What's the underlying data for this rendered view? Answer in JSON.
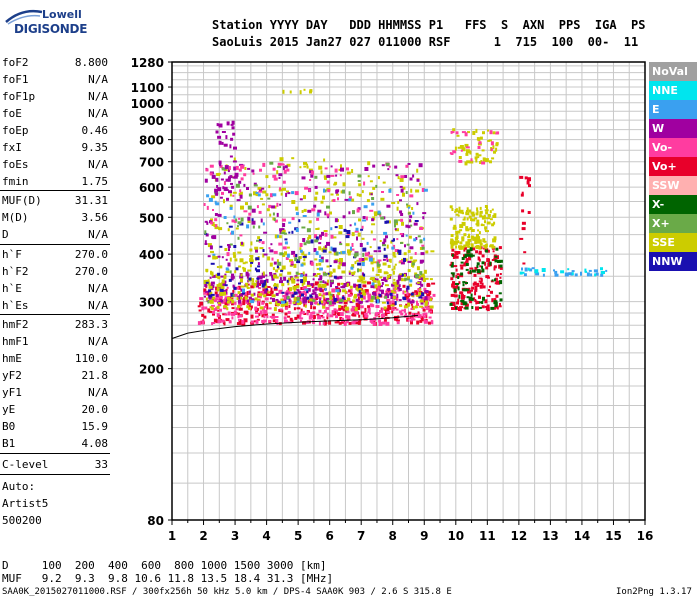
{
  "logo": {
    "line1": "Lowell",
    "line2": "DIGISONDE"
  },
  "header": {
    "labels": "Station YYYY DAY   DDD HHMMSS P1   FFS  S  AXN  PPS  IGA  PS",
    "values": "SaoLuis 2015 Jan27 027 011000 RSF      1  715  100  00-  11"
  },
  "params": [
    {
      "k": "foF2",
      "v": "8.800"
    },
    {
      "k": "foF1",
      "v": "N/A"
    },
    {
      "k": "foF1p",
      "v": "N/A"
    },
    {
      "k": "foE",
      "v": "N/A"
    },
    {
      "k": "foEp",
      "v": "0.46"
    },
    {
      "k": "fxI",
      "v": "9.35"
    },
    {
      "k": "foEs",
      "v": "N/A"
    },
    {
      "k": "fmin",
      "v": "1.75"
    },
    {
      "k": "MUF(D)",
      "v": "31.31"
    },
    {
      "k": "M(D)",
      "v": "3.56"
    },
    {
      "k": "D",
      "v": "N/A"
    },
    {
      "k": "h`F",
      "v": "270.0"
    },
    {
      "k": "h`F2",
      "v": "270.0"
    },
    {
      "k": "h`E",
      "v": "N/A"
    },
    {
      "k": "h`Es",
      "v": "N/A"
    },
    {
      "k": "hmF2",
      "v": "283.3"
    },
    {
      "k": "hmF1",
      "v": "N/A"
    },
    {
      "k": "hmE",
      "v": "110.0"
    },
    {
      "k": "yF2",
      "v": "21.8"
    },
    {
      "k": "yF1",
      "v": "N/A"
    },
    {
      "k": "yE",
      "v": "20.0"
    },
    {
      "k": "B0",
      "v": "15.9"
    },
    {
      "k": "B1",
      "v": "4.08"
    },
    {
      "k": "C-level",
      "v": "33"
    }
  ],
  "auto": {
    "l1": "Auto:",
    "l2": "Artist5",
    "l3": "500200"
  },
  "muf_table": {
    "row1": "D     100  200  400  600  800 1000 1500 3000 [km]",
    "row2": "MUF   9.2  9.3  9.8 10.6 11.8 13.5 18.4 31.3 [MHz]"
  },
  "footer": {
    "left": "SAA0K_2015027011000.RSF / 300fx256h 50 kHz 5.0 km / DPS-4 SAA0K 903 / 2.6 S 315.8 E",
    "right": "Ion2Png 1.3.17"
  },
  "legend": [
    {
      "label": "NoVal",
      "bg": "#a0a0a0",
      "fg": "#ffffff"
    },
    {
      "label": "NNE",
      "bg": "#00e5ee",
      "fg": "#ffffff"
    },
    {
      "label": "E",
      "bg": "#3aa0f0",
      "fg": "#ffffff"
    },
    {
      "label": "W",
      "bg": "#a000a0",
      "fg": "#ffffff"
    },
    {
      "label": "Vo-",
      "bg": "#ff3ca0",
      "fg": "#ffffff"
    },
    {
      "label": "Vo+",
      "bg": "#e8002a",
      "fg": "#ffffff"
    },
    {
      "label": "SSW",
      "bg": "#ffb0b0",
      "fg": "#ffffff"
    },
    {
      "label": "X-",
      "bg": "#006400",
      "fg": "#ffffff"
    },
    {
      "label": "X+",
      "bg": "#6aaa48",
      "fg": "#ffffff"
    },
    {
      "label": "SSE",
      "bg": "#cccc00",
      "fg": "#ffffff"
    },
    {
      "label": "NNW",
      "bg": "#1a10b0",
      "fg": "#ffffff"
    }
  ],
  "chart_data": {
    "type": "scatter",
    "x_scale": "linear",
    "y_scale": "log",
    "xlim": [
      1,
      16
    ],
    "ylim": [
      80,
      1280
    ],
    "x_ticks": [
      "1",
      "2",
      "3",
      "4",
      "5",
      "6",
      "7",
      "8",
      "9",
      "10",
      "11",
      "12",
      "13",
      "14",
      "15",
      "16"
    ],
    "y_ticks": [
      {
        "value": 80,
        "label": "80"
      },
      {
        "value": 200,
        "label": "200"
      },
      {
        "value": 300,
        "label": "300"
      },
      {
        "value": 400,
        "label": "400"
      },
      {
        "value": 500,
        "label": "500"
      },
      {
        "value": 600,
        "label": "600"
      },
      {
        "value": 700,
        "label": "700"
      },
      {
        "value": 800,
        "label": "800"
      },
      {
        "value": 900,
        "label": "900"
      },
      {
        "value": 1000,
        "label": "1000"
      },
      {
        "value": 1100,
        "label": "1100"
      },
      {
        "value": 1280,
        "label": "1280"
      }
    ],
    "grid": true,
    "legend_position": "right",
    "trace_curve": [
      [
        1.0,
        240
      ],
      [
        1.5,
        248
      ],
      [
        2.0,
        252
      ],
      [
        3.0,
        258
      ],
      [
        4.0,
        262
      ],
      [
        5.0,
        265
      ],
      [
        6.0,
        267
      ],
      [
        7.0,
        269
      ],
      [
        8.0,
        272
      ],
      [
        8.8,
        276
      ]
    ],
    "echo_clusters": [
      {
        "f": [
          1.8,
          9.3
        ],
        "h": [
          265,
          340
        ],
        "series": "Vo+",
        "n": 340
      },
      {
        "f": [
          1.8,
          9.3
        ],
        "h": [
          265,
          330
        ],
        "series": "Vo-",
        "n": 300
      },
      {
        "f": [
          2.0,
          9.2
        ],
        "h": [
          300,
          360
        ],
        "series": "W",
        "n": 220
      },
      {
        "f": [
          2.0,
          9.2
        ],
        "h": [
          290,
          420
        ],
        "series": "SSE",
        "n": 280
      },
      {
        "f": [
          2.0,
          9.0
        ],
        "h": [
          330,
          720
        ],
        "series": "SSE",
        "n": 220
      },
      {
        "f": [
          2.0,
          9.0
        ],
        "h": [
          380,
          700
        ],
        "series": "W",
        "n": 160
      },
      {
        "f": [
          2.0,
          9.0
        ],
        "h": [
          380,
          700
        ],
        "series": "Vo-",
        "n": 120
      },
      {
        "f": [
          2.0,
          9.0
        ],
        "h": [
          300,
          500
        ],
        "series": "NNW",
        "n": 100
      },
      {
        "f": [
          2.0,
          9.0
        ],
        "h": [
          300,
          700
        ],
        "series": "X+",
        "n": 90
      },
      {
        "f": [
          2.0,
          9.0
        ],
        "h": [
          300,
          600
        ],
        "series": "E",
        "n": 70
      },
      {
        "f": [
          2.2,
          3.0
        ],
        "h": [
          560,
          900
        ],
        "series": "W",
        "n": 40
      },
      {
        "f": [
          9.8,
          11.4
        ],
        "h": [
          290,
          420
        ],
        "series": "Vo+",
        "n": 160
      },
      {
        "f": [
          9.8,
          11.4
        ],
        "h": [
          290,
          420
        ],
        "series": "X-",
        "n": 70
      },
      {
        "f": [
          9.8,
          11.2
        ],
        "h": [
          420,
          540
        ],
        "series": "SSE",
        "n": 130
      },
      {
        "f": [
          9.8,
          11.3
        ],
        "h": [
          700,
          860
        ],
        "series": "SSE",
        "n": 45
      },
      {
        "f": [
          9.8,
          11.3
        ],
        "h": [
          700,
          860
        ],
        "series": "Vo-",
        "n": 20
      },
      {
        "f": [
          12.0,
          12.3
        ],
        "h": [
          360,
          680
        ],
        "series": "Vo+",
        "n": 14
      },
      {
        "f": [
          12.0,
          14.8
        ],
        "h": [
          355,
          372
        ],
        "series": "E",
        "n": 24
      },
      {
        "f": [
          12.0,
          14.8
        ],
        "h": [
          355,
          372
        ],
        "series": "NNE",
        "n": 14
      },
      {
        "f": [
          4.5,
          5.6
        ],
        "h": [
          1070,
          1090
        ],
        "series": "SSE",
        "n": 6
      }
    ]
  }
}
